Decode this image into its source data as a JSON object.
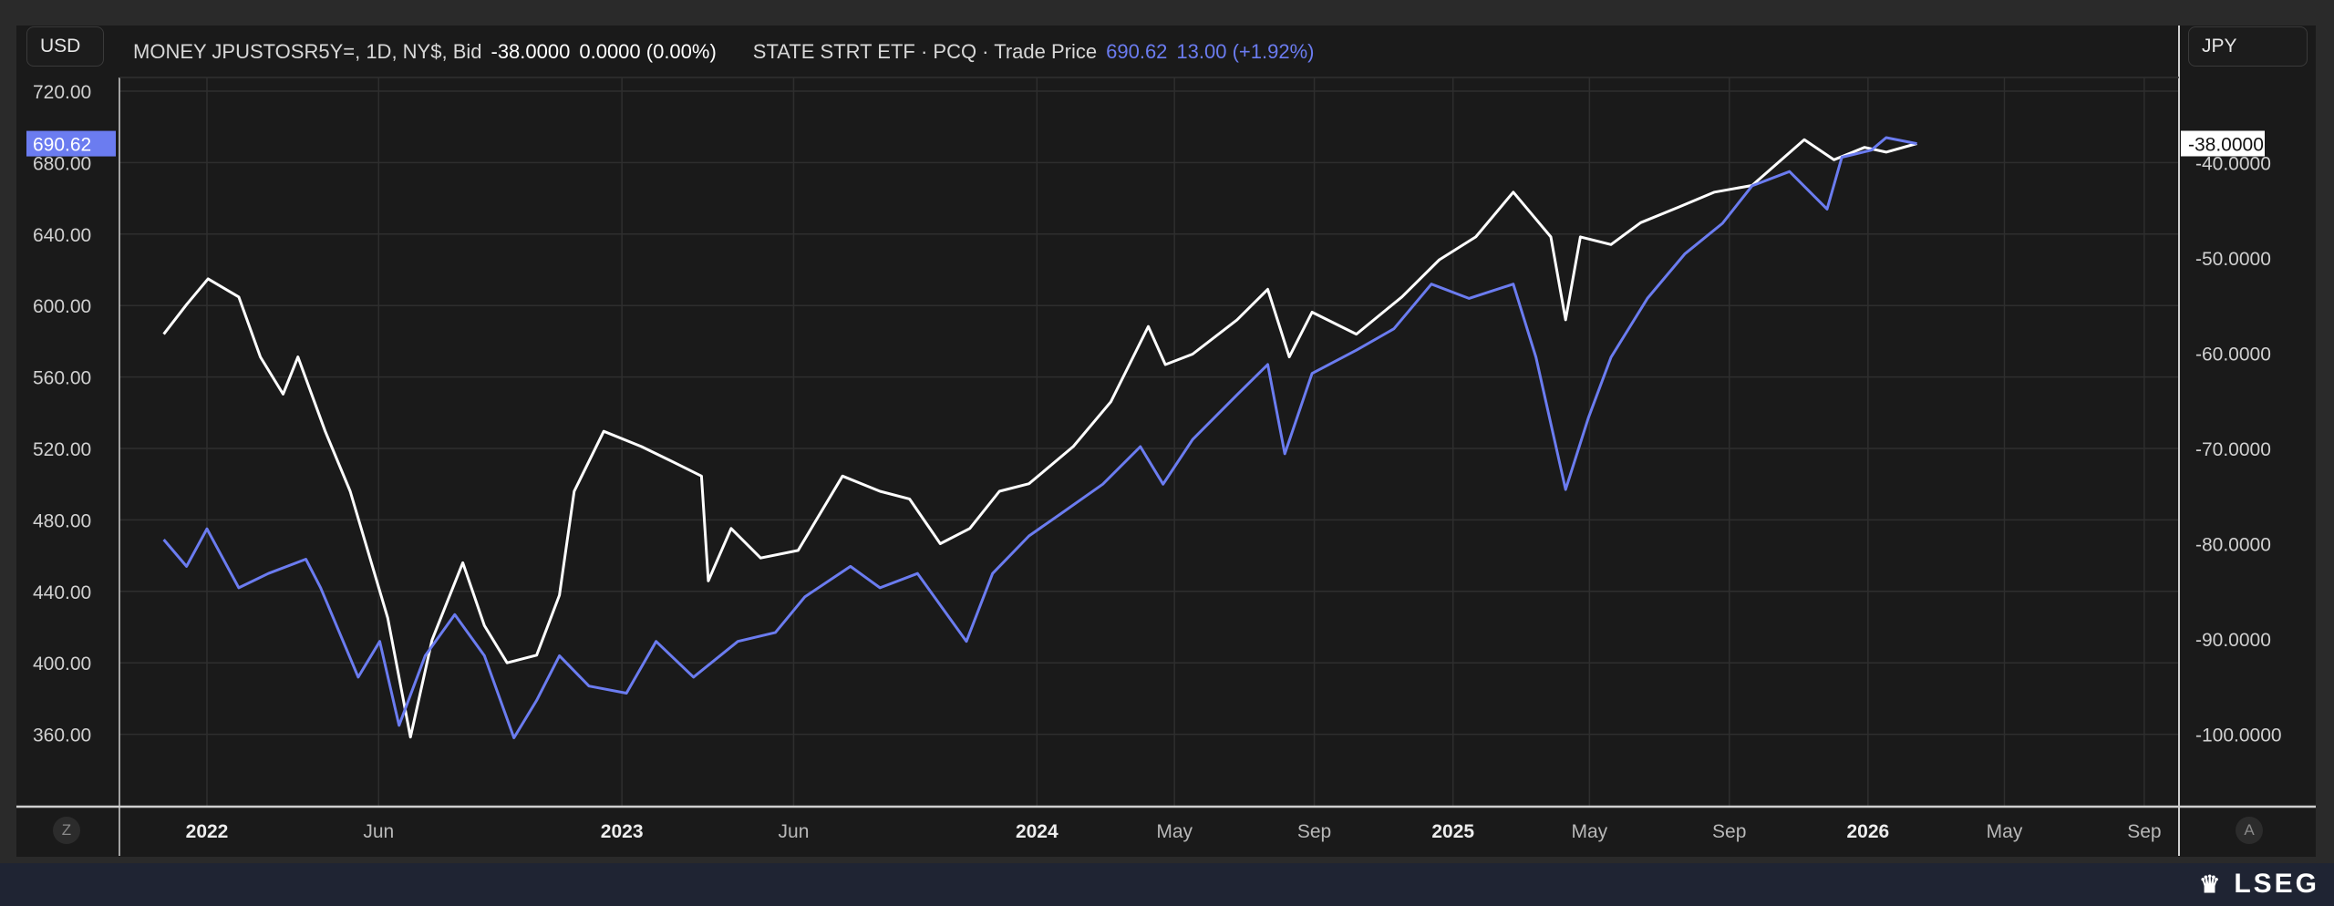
{
  "header": {
    "left_currency": "USD",
    "right_currency": "JPY",
    "series1_label": "MONEY JPUSTOSR5Y=, 1D, NY$, Bid",
    "series1_last": "-38.0000",
    "series1_change": "0.0000 (0.00%)",
    "series2_label": "STATE STRT ETF · PCQ · Trade Price",
    "series2_last": "690.62",
    "series2_change": "13.00 (+1.92%)"
  },
  "left_price_tag": "690.62",
  "right_price_tag": "-38.0000",
  "axis_buttons": {
    "left": "Z",
    "right": "A"
  },
  "brand": "LSEG",
  "colors": {
    "series1": "#ffffff",
    "series2": "#6b7cf0",
    "background": "#1a1a1a",
    "grid": "#2e2e2e"
  },
  "chart_data": {
    "type": "line",
    "grid": true,
    "left_axis": {
      "label": "USD",
      "ylim": [
        330,
        735
      ],
      "ticks": [
        "720.00",
        "680.00",
        "640.00",
        "600.00",
        "560.00",
        "520.00",
        "480.00",
        "440.00",
        "400.00",
        "360.00"
      ]
    },
    "right_axis": {
      "label": "JPY",
      "ticks": [
        "-40.0000",
        "-50.0000",
        "-60.0000",
        "-70.0000",
        "-80.0000",
        "-90.0000",
        "-100.0000"
      ]
    },
    "x_ticks": [
      {
        "label": "2022",
        "date": "2022-01-01",
        "bold": true
      },
      {
        "label": "Jun",
        "date": "2022-06-01"
      },
      {
        "label": "2023",
        "date": "2023-01-01",
        "bold": true
      },
      {
        "label": "Jun",
        "date": "2023-06-01"
      },
      {
        "label": "2024",
        "date": "2024-01-01",
        "bold": true
      },
      {
        "label": "May",
        "date": "2024-05-01"
      },
      {
        "label": "Sep",
        "date": "2024-09-01"
      },
      {
        "label": "2025",
        "date": "2025-01-01",
        "bold": true
      },
      {
        "label": "May",
        "date": "2025-05-01"
      },
      {
        "label": "Sep",
        "date": "2025-09-01"
      },
      {
        "label": "2026",
        "date": "2026-01-01",
        "bold": true
      },
      {
        "label": "May",
        "date": "2026-05-01"
      },
      {
        "label": "Sep",
        "date": "2026-09-01"
      }
    ],
    "series": [
      {
        "name": "MONEY JPUSTOSR5Y=, 1D, NY$, Bid",
        "axis": "right",
        "color": "#ffffff",
        "points": [
          [
            "2021-11-24",
            -58.0
          ],
          [
            "2021-12-14",
            -54.9
          ],
          [
            "2022-01-02",
            -52.2
          ],
          [
            "2022-01-29",
            -54.1
          ],
          [
            "2022-02-17",
            -60.4
          ],
          [
            "2022-03-09",
            -64.3
          ],
          [
            "2022-03-22",
            -60.4
          ],
          [
            "2022-04-15",
            -68.2
          ],
          [
            "2022-05-07",
            -74.5
          ],
          [
            "2022-06-09",
            -87.8
          ],
          [
            "2022-06-29",
            -100.3
          ],
          [
            "2022-07-18",
            -90.1
          ],
          [
            "2022-08-14",
            -82.0
          ],
          [
            "2022-09-02",
            -88.6
          ],
          [
            "2022-09-22",
            -92.5
          ],
          [
            "2022-10-18",
            -91.7
          ],
          [
            "2022-11-07",
            -85.4
          ],
          [
            "2022-11-20",
            -74.5
          ],
          [
            "2022-12-16",
            -68.2
          ],
          [
            "2023-01-18",
            -69.8
          ],
          [
            "2023-02-13",
            -71.3
          ],
          [
            "2023-03-12",
            -72.9
          ],
          [
            "2023-03-18",
            -83.9
          ],
          [
            "2023-04-07",
            -78.4
          ],
          [
            "2023-05-03",
            -81.5
          ],
          [
            "2023-06-05",
            -80.7
          ],
          [
            "2023-07-14",
            -72.9
          ],
          [
            "2023-08-16",
            -74.5
          ],
          [
            "2023-09-11",
            -75.3
          ],
          [
            "2023-10-08",
            -80.0
          ],
          [
            "2023-11-03",
            -78.4
          ],
          [
            "2023-11-29",
            -74.5
          ],
          [
            "2023-12-25",
            -73.7
          ],
          [
            "2024-02-02",
            -69.8
          ],
          [
            "2024-03-06",
            -65.1
          ],
          [
            "2024-04-08",
            -57.2
          ],
          [
            "2024-04-23",
            -61.2
          ],
          [
            "2024-05-17",
            -60.1
          ],
          [
            "2024-06-25",
            -56.5
          ],
          [
            "2024-07-22",
            -53.3
          ],
          [
            "2024-08-10",
            -60.4
          ],
          [
            "2024-08-30",
            -55.7
          ],
          [
            "2024-10-08",
            -58.0
          ],
          [
            "2024-11-17",
            -54.1
          ],
          [
            "2024-12-20",
            -50.2
          ],
          [
            "2025-01-21",
            -47.8
          ],
          [
            "2025-02-23",
            -43.1
          ],
          [
            "2025-03-28",
            -47.8
          ],
          [
            "2025-04-10",
            -56.5
          ],
          [
            "2025-04-23",
            -47.8
          ],
          [
            "2025-05-20",
            -48.6
          ],
          [
            "2025-06-15",
            -46.3
          ],
          [
            "2025-07-18",
            -44.7
          ],
          [
            "2025-08-19",
            -43.1
          ],
          [
            "2025-09-21",
            -42.4
          ],
          [
            "2025-11-06",
            -37.6
          ],
          [
            "2025-12-02",
            -39.7
          ],
          [
            "2025-12-29",
            -38.4
          ],
          [
            "2026-01-17",
            -38.9
          ],
          [
            "2026-02-13",
            -38.0
          ]
        ]
      },
      {
        "name": "STATE STRT ETF · PCQ · Trade Price",
        "axis": "left",
        "color": "#6b7cf0",
        "points": [
          [
            "2021-11-24",
            469
          ],
          [
            "2021-12-14",
            454
          ],
          [
            "2022-01-01",
            475
          ],
          [
            "2022-01-29",
            442
          ],
          [
            "2022-02-24",
            450
          ],
          [
            "2022-03-29",
            458
          ],
          [
            "2022-04-11",
            442
          ],
          [
            "2022-05-14",
            392
          ],
          [
            "2022-06-02",
            412
          ],
          [
            "2022-06-19",
            365
          ],
          [
            "2022-07-12",
            404
          ],
          [
            "2022-08-07",
            427
          ],
          [
            "2022-09-02",
            404
          ],
          [
            "2022-09-28",
            358
          ],
          [
            "2022-10-18",
            379
          ],
          [
            "2022-11-07",
            404
          ],
          [
            "2022-12-03",
            387
          ],
          [
            "2023-01-05",
            383
          ],
          [
            "2023-01-31",
            412
          ],
          [
            "2023-03-05",
            392
          ],
          [
            "2023-04-13",
            412
          ],
          [
            "2023-05-16",
            417
          ],
          [
            "2023-06-11",
            437
          ],
          [
            "2023-07-21",
            454
          ],
          [
            "2023-08-16",
            442
          ],
          [
            "2023-09-18",
            450
          ],
          [
            "2023-10-31",
            412
          ],
          [
            "2023-11-23",
            450
          ],
          [
            "2023-12-25",
            471
          ],
          [
            "2024-01-21",
            483
          ],
          [
            "2024-02-28",
            500
          ],
          [
            "2024-04-01",
            521
          ],
          [
            "2024-04-21",
            500
          ],
          [
            "2024-05-17",
            525
          ],
          [
            "2024-06-25",
            550
          ],
          [
            "2024-07-22",
            567
          ],
          [
            "2024-08-06",
            517
          ],
          [
            "2024-08-30",
            562
          ],
          [
            "2024-10-08",
            575
          ],
          [
            "2024-11-10",
            587
          ],
          [
            "2024-12-13",
            612
          ],
          [
            "2025-01-15",
            604
          ],
          [
            "2025-02-23",
            612
          ],
          [
            "2025-03-15",
            571
          ],
          [
            "2025-04-10",
            497
          ],
          [
            "2025-04-30",
            537
          ],
          [
            "2025-05-20",
            571
          ],
          [
            "2025-06-21",
            604
          ],
          [
            "2025-07-24",
            629
          ],
          [
            "2025-08-26",
            646
          ],
          [
            "2025-09-21",
            667
          ],
          [
            "2025-10-24",
            675
          ],
          [
            "2025-11-26",
            654
          ],
          [
            "2025-12-09",
            683
          ],
          [
            "2026-01-04",
            687
          ],
          [
            "2026-01-17",
            694
          ],
          [
            "2026-02-13",
            690.62
          ]
        ]
      }
    ]
  }
}
